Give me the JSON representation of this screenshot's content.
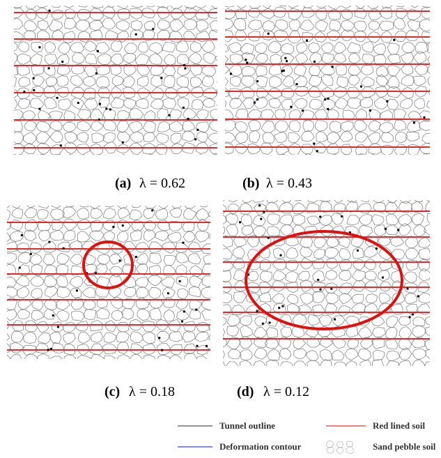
{
  "panels": [
    {
      "label": "(a)",
      "caption": "λ = 0.62"
    },
    {
      "label": "(b)",
      "caption": "λ = 0.43"
    },
    {
      "label": "(c)",
      "caption": "λ = 0.18"
    },
    {
      "label": "(d)",
      "caption": "λ = 0.12"
    }
  ],
  "legend": [
    {
      "label": "Tunnel outline"
    },
    {
      "label": "Red lined soil"
    },
    {
      "label": "Deformation contour"
    },
    {
      "label": "Sand pebble soil"
    }
  ]
}
